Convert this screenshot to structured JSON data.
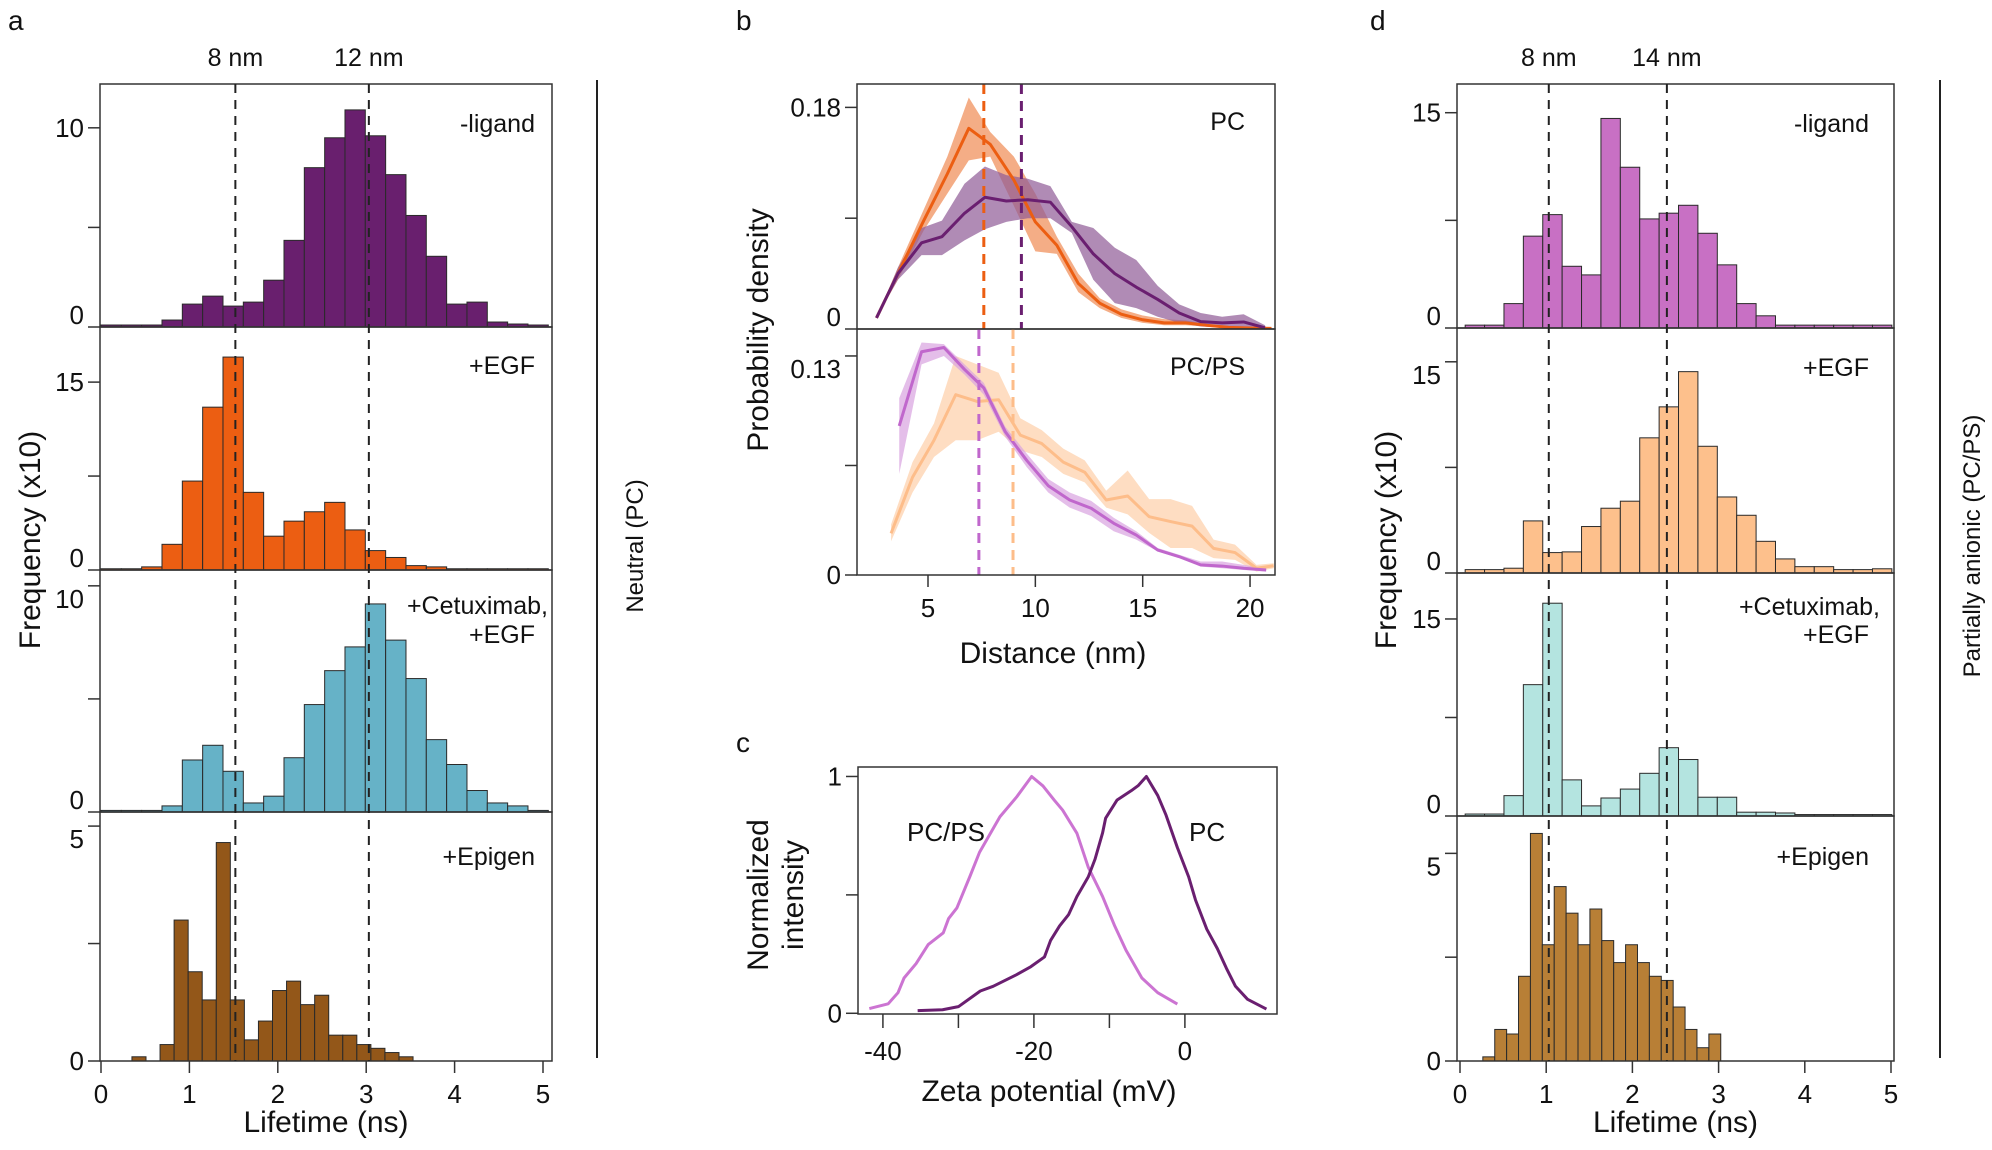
{
  "panel_labels": [
    "a",
    "b",
    "c",
    "d"
  ],
  "chart_data": [
    {
      "panel": "a",
      "type": "bar",
      "xlabel": "Lifetime (ns)",
      "ylabel": "Frequency (x10)",
      "side_label": "Neutral (PC)",
      "xlim": [
        -0.01,
        5.1
      ],
      "xticks": [
        0,
        1,
        2,
        3,
        4,
        5
      ],
      "reference_lines": [
        {
          "x": 1.52,
          "label": "8 nm"
        },
        {
          "x": 3.03,
          "label": "12 nm"
        }
      ],
      "subplots": [
        {
          "label": [
            "-ligand"
          ],
          "color": "#691f6e",
          "ylim": [
            0,
            12.2
          ],
          "yticks": [
            0,
            10
          ],
          "minor_yticks": [
            5
          ],
          "bin_start": 0,
          "bin_width": 0.23,
          "values": [
            0.1,
            0.1,
            0.1,
            0.35,
            1.15,
            1.55,
            1.05,
            1.25,
            2.35,
            4.35,
            8.0,
            9.5,
            10.9,
            9.6,
            7.65,
            5.6,
            3.55,
            1.15,
            1.25,
            0.25,
            0.15,
            0.1
          ]
        },
        {
          "label": [
            "+EGF"
          ],
          "color": "#ec5e12",
          "ylim": [
            0,
            19.4
          ],
          "yticks": [
            0,
            15
          ],
          "minor_yticks": [
            7.5
          ],
          "bin_start": 0,
          "bin_width": 0.23,
          "values": [
            0.1,
            0.1,
            0.25,
            2.05,
            7.1,
            13,
            17,
            6.2,
            2.7,
            3.9,
            4.65,
            5.4,
            3.2,
            1.55,
            1.0,
            0.35,
            0.25,
            0.1,
            0.1,
            0.1,
            0.1,
            0.1
          ]
        },
        {
          "label": [
            "+Cetuximab,",
            "+EGF"
          ],
          "color": "#66b2c7",
          "ylim": [
            0,
            10.7
          ],
          "yticks": [
            0,
            10
          ],
          "minor_yticks": [
            5
          ],
          "bin_start": 0,
          "bin_width": 0.23,
          "values": [
            0.07,
            0.07,
            0.07,
            0.27,
            2.3,
            2.95,
            1.8,
            0.4,
            0.7,
            2.4,
            4.75,
            6.25,
            7.3,
            9.2,
            7.6,
            5.9,
            3.2,
            2.1,
            0.95,
            0.4,
            0.27,
            0.07
          ]
        },
        {
          "label": [
            "+Epigen"
          ],
          "color": "#935719",
          "ylim": [
            0,
            5.3
          ],
          "yticks": [
            0,
            5
          ],
          "minor_yticks": [
            2.5
          ],
          "bin_start": 0.35,
          "bin_width": 0.159,
          "values": [
            0.09,
            0,
            0.35,
            3.0,
            1.9,
            1.3,
            4.65,
            1.3,
            0.45,
            0.85,
            1.5,
            1.7,
            1.2,
            1.4,
            0.55,
            0.55,
            0.35,
            0.27,
            0.18,
            0.09
          ]
        }
      ]
    },
    {
      "panel": "b",
      "type": "line",
      "xlabel": "Distance (nm)",
      "ylabel": "Probability density",
      "xlim": [
        1.7,
        21.2
      ],
      "xticks": [
        5,
        10,
        15,
        20
      ],
      "subplots": [
        {
          "label": "PC",
          "ylim": [
            0,
            0.199
          ],
          "yticks": [
            0,
            0.18
          ],
          "minor_yticks": [
            0.09
          ],
          "series": [
            {
              "color": "#ec5e12",
              "band_color": "#f08a52",
              "dashed_x": 7.6,
              "x": [
                2.6,
                3.6,
                4.8,
                5.9,
                6.9,
                7.9,
                9.0,
                10.0,
                11.0,
                12.0,
                13.0,
                14.0,
                15.0,
                16.0,
                17.0,
                18.0,
                19.0,
                20.0,
                21.0
              ],
              "y": [
                0.009,
                0.045,
                0.088,
                0.126,
                0.163,
                0.15,
                0.121,
                0.087,
                0.068,
                0.037,
                0.021,
                0.012,
                0.0075,
                0.005,
                0.005,
                0.003,
                0.0013,
                0.0008,
                0.0005
              ],
              "upper": [
                0.009,
                0.05,
                0.097,
                0.14,
                0.188,
                0.16,
                0.14,
                0.11,
                0.075,
                0.045,
                0.025,
                0.016,
                0.011,
                0.008,
                0.007,
                0.004,
                0.002,
                0.001,
                0.0006
              ],
              "lower": [
                0.009,
                0.04,
                0.08,
                0.11,
                0.137,
                0.14,
                0.1,
                0.063,
                0.061,
                0.03,
                0.017,
                0.009,
                0.005,
                0.003,
                0.003,
                0.002,
                0.001,
                0.0005,
                0.0003
              ]
            },
            {
              "color": "#6a1f70",
              "band_color": "#8e5a96",
              "dashed_x": 9.35,
              "x": [
                2.6,
                3.6,
                4.7,
                5.65,
                6.7,
                7.65,
                8.65,
                9.65,
                10.7,
                11.7,
                12.7,
                13.7,
                14.7,
                15.7,
                16.7,
                17.7,
                18.7,
                19.7,
                20.7
              ],
              "y": [
                0.009,
                0.045,
                0.07,
                0.075,
                0.094,
                0.107,
                0.104,
                0.105,
                0.103,
                0.083,
                0.061,
                0.045,
                0.034,
                0.024,
                0.013,
                0.006,
                0.005,
                0.0057,
                0.001
              ],
              "upper": [
                0.009,
                0.05,
                0.082,
                0.088,
                0.118,
                0.132,
                0.125,
                0.122,
                0.116,
                0.087,
                0.082,
                0.066,
                0.056,
                0.035,
                0.02,
                0.013,
                0.01,
                0.012,
                0.003
              ],
              "lower": [
                0.009,
                0.04,
                0.06,
                0.06,
                0.072,
                0.081,
                0.087,
                0.09,
                0.09,
                0.078,
                0.04,
                0.021,
                0.017,
                0.01,
                0.005,
                0.002,
                0.001,
                0.001,
                0.0
              ]
            }
          ]
        },
        {
          "label": "PC/PS",
          "ylim": [
            0,
            0.146
          ],
          "yticks": [
            0,
            0.13
          ],
          "minor_yticks": [
            0.065
          ],
          "series": [
            {
              "color": "#fdbd8a",
              "band_color": "#fdcfa8",
              "dashed_x": 8.96,
              "x": [
                3.28,
                4.28,
                5.28,
                6.29,
                7.29,
                8.29,
                9.3,
                10.3,
                11.3,
                12.3,
                13.3,
                14.3,
                15.3,
                16.3,
                17.3,
                18.3,
                19.3,
                20.3,
                21.1
              ],
              "y": [
                0.0247,
                0.058,
                0.08,
                0.107,
                0.103,
                0.104,
                0.083,
                0.078,
                0.067,
                0.061,
                0.0445,
                0.0469,
                0.0346,
                0.0317,
                0.029,
                0.0158,
                0.0133,
                0.004,
                0.0055
              ],
              "upper": [
                0.03,
                0.067,
                0.09,
                0.13,
                0.125,
                0.12,
                0.093,
                0.086,
                0.075,
                0.068,
                0.05,
                0.062,
                0.045,
                0.045,
                0.041,
                0.021,
                0.018,
                0.006,
                0.007
              ],
              "lower": [
                0.02,
                0.049,
                0.07,
                0.08,
                0.08,
                0.085,
                0.074,
                0.07,
                0.06,
                0.055,
                0.04,
                0.036,
                0.025,
                0.016,
                0.016,
                0.01,
                0.009,
                0.002,
                0.004
              ]
            },
            {
              "color": "#c067cc",
              "band_color": "#d9a3e0",
              "dashed_x": 7.37,
              "x": [
                3.66,
                4.7,
                5.74,
                6.7,
                7.6,
                8.6,
                9.6,
                10.6,
                11.6,
                12.6,
                13.65,
                14.7,
                15.7,
                16.7,
                17.7,
                18.7,
                19.7,
                20.75
              ],
              "y": [
                0.0885,
                0.1325,
                0.135,
                0.122,
                0.111,
                0.085,
                0.068,
                0.053,
                0.0445,
                0.0396,
                0.0307,
                0.0237,
                0.0148,
                0.0109,
                0.006,
                0.0053,
                0.004,
                0.003
              ],
              "upper": [
                0.105,
                0.138,
                0.137,
                0.125,
                0.114,
                0.088,
                0.072,
                0.057,
                0.049,
                0.044,
                0.034,
                0.026,
                0.016,
                0.012,
                0.008,
                0.008,
                0.006,
                0.004
              ],
              "lower": [
                0.06,
                0.125,
                0.13,
                0.119,
                0.107,
                0.082,
                0.064,
                0.049,
                0.04,
                0.035,
                0.026,
                0.021,
                0.014,
                0.01,
                0.005,
                0.004,
                0.003,
                0.002
              ]
            }
          ]
        }
      ]
    },
    {
      "panel": "c",
      "type": "line",
      "xlabel": "Zeta potential (mV)",
      "ylabel": [
        "Normalized",
        "intensity"
      ],
      "xlim": [
        -43.3,
        12.2
      ],
      "ylim": [
        -0.003,
        1.04
      ],
      "xticks": [
        -40,
        -20,
        0
      ],
      "minor_xticks": [
        -30,
        -10
      ],
      "yticks": [
        0,
        1
      ],
      "minor_yticks": [
        0.5
      ],
      "series": [
        {
          "name": "PC/PS",
          "color": "#cc74d2",
          "x": [
            -41.8,
            -39.3,
            -38,
            -37.2,
            -35.6,
            -34,
            -32,
            -31.3,
            -30.2,
            -28.5,
            -27.2,
            -24.5,
            -22.3,
            -20.3,
            -18.8,
            -17.3,
            -16.2,
            -14.3,
            -12.8,
            -10.9,
            -9.3,
            -7.8,
            -5.7,
            -3.6,
            -1.0
          ],
          "y": [
            0.02,
            0.04,
            0.087,
            0.149,
            0.21,
            0.29,
            0.34,
            0.4,
            0.445,
            0.576,
            0.68,
            0.83,
            0.913,
            1.0,
            0.96,
            0.9,
            0.858,
            0.76,
            0.617,
            0.493,
            0.369,
            0.266,
            0.149,
            0.087,
            0.039
          ]
        },
        {
          "name": "PC",
          "color": "#6a1f70",
          "x": [
            -35.4,
            -32.1,
            -30,
            -27.1,
            -25.4,
            -22.3,
            -20.4,
            -18.6,
            -17.8,
            -16.6,
            -15.4,
            -14.3,
            -12.8,
            -11.9,
            -10.9,
            -10.5,
            -9.0,
            -7.1,
            -6.2,
            -5.1,
            -3.6,
            -2.5,
            -1.0,
            0.5,
            1.4,
            2.9,
            4.3,
            5.5,
            6.7,
            8.3,
            10.8
          ],
          "y": [
            0.011,
            0.015,
            0.028,
            0.094,
            0.114,
            0.163,
            0.197,
            0.238,
            0.307,
            0.369,
            0.417,
            0.493,
            0.576,
            0.651,
            0.762,
            0.824,
            0.9,
            0.94,
            0.961,
            1.0,
            0.92,
            0.837,
            0.7,
            0.576,
            0.479,
            0.355,
            0.273,
            0.19,
            0.114,
            0.059,
            0.018
          ]
        }
      ]
    },
    {
      "panel": "d",
      "type": "bar",
      "xlabel": "Lifetime (ns)",
      "ylabel": "Frequency (x10)",
      "side_label": "Partially anionic (PC/PS)",
      "xlim": [
        -0.03,
        5.03
      ],
      "xticks": [
        0,
        1,
        2,
        3,
        4,
        5
      ],
      "reference_lines": [
        {
          "x": 1.03,
          "label": "8 nm"
        },
        {
          "x": 2.4,
          "label": "14 nm"
        }
      ],
      "subplots": [
        {
          "label": [
            "-ligand"
          ],
          "color": "#c870c4",
          "ylim": [
            0,
            17.0
          ],
          "yticks": [
            0,
            15
          ],
          "minor_yticks": [
            7.5
          ],
          "bin_start": 0.06,
          "bin_width": 0.225,
          "values": [
            0.2,
            0.2,
            1.7,
            6.4,
            7.9,
            4.3,
            3.7,
            14.6,
            11.2,
            7.6,
            8.0,
            8.55,
            6.6,
            4.4,
            1.7,
            0.85,
            0.2,
            0.2,
            0.2,
            0.2,
            0.2,
            0.2
          ]
        },
        {
          "label": [
            "+EGF"
          ],
          "color": "#fdc08c",
          "ylim": [
            0,
            17.4
          ],
          "yticks": [
            0,
            15
          ],
          "minor_yticks": [
            7.5
          ],
          "bin_start": 0.06,
          "bin_width": 0.225,
          "values": [
            0.24,
            0.24,
            0.34,
            3.7,
            1.45,
            1.5,
            3.3,
            4.6,
            5.1,
            9.6,
            11.8,
            14.3,
            9.0,
            5.4,
            4.1,
            2.25,
            1.0,
            0.45,
            0.45,
            0.24,
            0.24,
            0.3
          ]
        },
        {
          "label": [
            "+Cetuximab,",
            "+EGF"
          ],
          "color": "#b4e4e0",
          "ylim": [
            0,
            18.5
          ],
          "yticks": [
            0,
            15
          ],
          "minor_yticks": [
            7.5
          ],
          "bin_start": 0.06,
          "bin_width": 0.225,
          "values": [
            0.15,
            0.15,
            1.55,
            10,
            16.2,
            2.75,
            0.77,
            1.37,
            2.05,
            3.25,
            5.2,
            4.3,
            1.43,
            1.43,
            0.29,
            0.29,
            0.23,
            0.11,
            0.11,
            0.11,
            0.11,
            0.11
          ]
        },
        {
          "label": [
            "+Epigen"
          ],
          "color": "#b87f36",
          "ylim": [
            0,
            5.9
          ],
          "yticks": [
            0,
            5
          ],
          "minor_yticks": [
            2.5
          ],
          "bin_start": 0.265,
          "bin_width": 0.138,
          "values": [
            0.1,
            0.76,
            0.65,
            2.04,
            5.48,
            2.8,
            4.2,
            3.56,
            2.8,
            3.66,
            2.9,
            2.37,
            2.8,
            2.37,
            2.04,
            1.94,
            1.3,
            0.76,
            0.32,
            0.65
          ]
        }
      ]
    }
  ]
}
